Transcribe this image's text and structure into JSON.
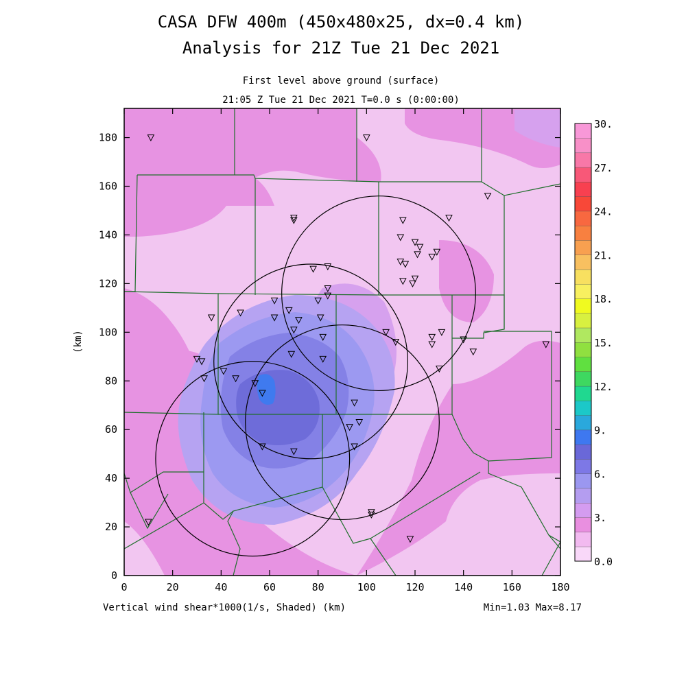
{
  "title_line1": "CASA DFW 400m (450x480x25, dx=0.4 km)",
  "title_line2": "Analysis for 21Z Tue 21 Dec 2021",
  "subtitle_line1": "First level above ground (surface)",
  "subtitle_line2": "21:05 Z Tue 21 Dec 2021    T=0.0 s (0:00:00)",
  "footer_left": "Vertical wind shear*1000(1/s, Shaded)  (km)",
  "footer_right": "Min=1.03 Max=8.17",
  "chart_data": {
    "type": "heatmap",
    "xlabel": "",
    "ylabel": "(km)",
    "xlim": [
      0,
      180
    ],
    "ylim": [
      0,
      192
    ],
    "x_ticks": [
      0,
      20,
      40,
      60,
      80,
      100,
      120,
      140,
      160,
      180
    ],
    "y_ticks": [
      0,
      20,
      40,
      60,
      80,
      100,
      120,
      140,
      160,
      180
    ],
    "field": "Vertical wind shear*1000 (1/s)",
    "min": 1.03,
    "max": 8.17,
    "colorbar": {
      "range": [
        0,
        30
      ],
      "step": 1.5,
      "labels": [
        "0.0",
        "3.",
        "6.",
        "9.",
        "12.",
        "15.",
        "18.",
        "21.",
        "24.",
        "27.",
        "30."
      ],
      "colors": [
        "#f9d8f9",
        "#f2baf0",
        "#e98fe0",
        "#d49cf0",
        "#b49df0",
        "#9b97f0",
        "#7d78e6",
        "#6a68d8",
        "#3e78f0",
        "#2aa8dc",
        "#1cc8c8",
        "#20d890",
        "#3ed860",
        "#60e040",
        "#90e040",
        "#b0e860",
        "#d8f040",
        "#f0fa20",
        "#f8f060",
        "#f8e060",
        "#f8c060",
        "#f8a050",
        "#f88040",
        "#f86840",
        "#f84838",
        "#f84050",
        "#f85878",
        "#f878a8",
        "#f890c8",
        "#f898d8"
      ]
    },
    "radar_rings": [
      {
        "center": [
          77,
          88
        ],
        "radius_km": 40
      },
      {
        "center": [
          105,
          116
        ],
        "radius_km": 40
      },
      {
        "center": [
          53,
          48
        ],
        "radius_km": 40
      },
      {
        "center": [
          90,
          63
        ],
        "radius_km": 40
      }
    ],
    "stations": [
      [
        11,
        180
      ],
      [
        100,
        180
      ],
      [
        150,
        156
      ],
      [
        70,
        147
      ],
      [
        70,
        146
      ],
      [
        134,
        147
      ],
      [
        115,
        146
      ],
      [
        114,
        139
      ],
      [
        120,
        137
      ],
      [
        122,
        135
      ],
      [
        121,
        132
      ],
      [
        127,
        131
      ],
      [
        129,
        133
      ],
      [
        78,
        126
      ],
      [
        84,
        127
      ],
      [
        114,
        129
      ],
      [
        116,
        128
      ],
      [
        115,
        121
      ],
      [
        120,
        122
      ],
      [
        119,
        120
      ],
      [
        84,
        118
      ],
      [
        84,
        115
      ],
      [
        62,
        113
      ],
      [
        80,
        113
      ],
      [
        68,
        109
      ],
      [
        72,
        105
      ],
      [
        62,
        106
      ],
      [
        81,
        106
      ],
      [
        48,
        108
      ],
      [
        36,
        106
      ],
      [
        70,
        101
      ],
      [
        108,
        100
      ],
      [
        127,
        98
      ],
      [
        131,
        100
      ],
      [
        140,
        97
      ],
      [
        82,
        98
      ],
      [
        112,
        96
      ],
      [
        127,
        95
      ],
      [
        144,
        92
      ],
      [
        174,
        95
      ],
      [
        69,
        91
      ],
      [
        82,
        89
      ],
      [
        30,
        89
      ],
      [
        32,
        88
      ],
      [
        130,
        85
      ],
      [
        41,
        84
      ],
      [
        33,
        81
      ],
      [
        46,
        81
      ],
      [
        54,
        79
      ],
      [
        57,
        75
      ],
      [
        95,
        71
      ],
      [
        97,
        63
      ],
      [
        93,
        61
      ],
      [
        57,
        53
      ],
      [
        70,
        51
      ],
      [
        95,
        53
      ],
      [
        102,
        26
      ],
      [
        102,
        25
      ],
      [
        118,
        15
      ],
      [
        10,
        22
      ]
    ],
    "shading_levels": [
      {
        "value": 1.5,
        "description": "background light pink over lowest-shear areas"
      },
      {
        "value": 3.0,
        "description": "pink-magenta broad regions"
      },
      {
        "value": 4.5,
        "description": "light lavender around core"
      },
      {
        "value": 6.0,
        "description": "medium blue-purple core near x=55-85 km, y=45-105 km"
      },
      {
        "value": 7.5,
        "description": "darker core near x=60-75 km, y=55-85 km"
      },
      {
        "value": 8.17,
        "description": "max spot near x=58 km, y=77 km"
      }
    ]
  }
}
